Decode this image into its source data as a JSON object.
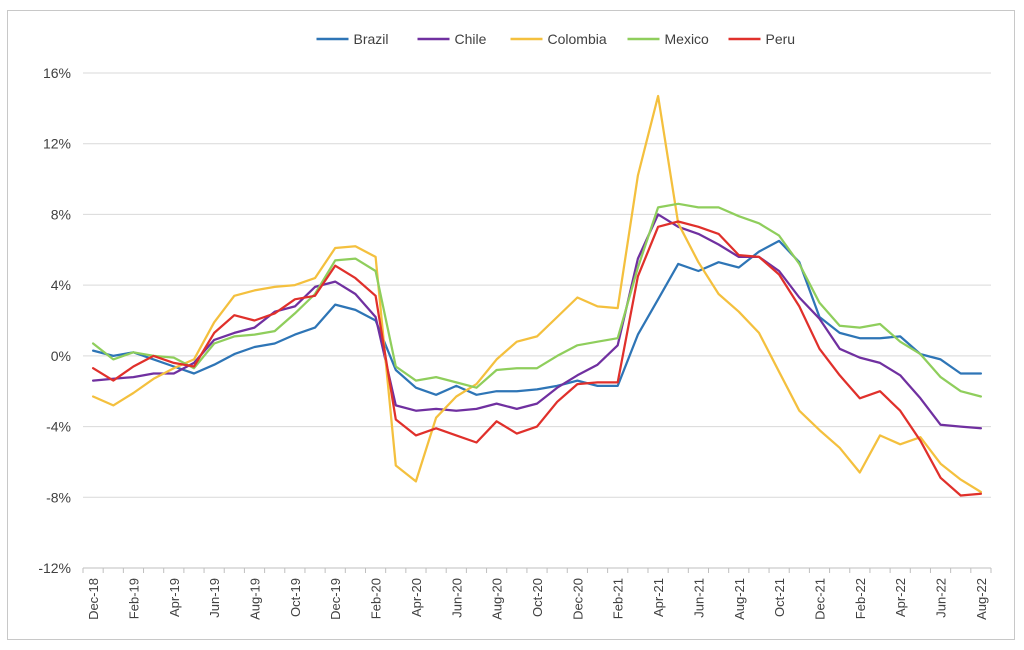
{
  "chart_data": {
    "type": "line",
    "title": "",
    "xlabel": "",
    "ylabel": "",
    "ylim": [
      -12,
      16
    ],
    "y_ticks": [
      -12,
      -8,
      -4,
      0,
      4,
      8,
      12,
      16
    ],
    "y_tick_labels": [
      "-12%",
      "-8%",
      "-4%",
      "0%",
      "4%",
      "8%",
      "12%",
      "16%"
    ],
    "grid": "horizontal",
    "legend_position": "top",
    "x": [
      "Dec-18",
      "Jan-19",
      "Feb-19",
      "Mar-19",
      "Apr-19",
      "May-19",
      "Jun-19",
      "Jul-19",
      "Aug-19",
      "Sep-19",
      "Oct-19",
      "Nov-19",
      "Dec-19",
      "Jan-20",
      "Feb-20",
      "Mar-20",
      "Apr-20",
      "May-20",
      "Jun-20",
      "Jul-20",
      "Aug-20",
      "Sep-20",
      "Oct-20",
      "Nov-20",
      "Dec-20",
      "Jan-21",
      "Feb-21",
      "Mar-21",
      "Apr-21",
      "May-21",
      "Jun-21",
      "Jul-21",
      "Aug-21",
      "Sep-21",
      "Oct-21",
      "Nov-21",
      "Dec-21",
      "Jan-22",
      "Feb-22",
      "Mar-22",
      "Apr-22",
      "May-22",
      "Jun-22",
      "Jul-22",
      "Aug-22"
    ],
    "x_tick_labels": [
      "Dec-18",
      "Feb-19",
      "Apr-19",
      "Jun-19",
      "Aug-19",
      "Oct-19",
      "Dec-19",
      "Feb-20",
      "Apr-20",
      "Jun-20",
      "Aug-20",
      "Oct-20",
      "Dec-20",
      "Feb-21",
      "Apr-21",
      "Jun-21",
      "Aug-21",
      "Oct-21",
      "Dec-21",
      "Feb-22",
      "Apr-22",
      "Jun-22",
      "Aug-22"
    ],
    "series": [
      {
        "name": "Brazil",
        "color": "#2e75b6",
        "values": [
          0.3,
          0.0,
          0.2,
          -0.2,
          -0.6,
          -1.0,
          -0.5,
          0.1,
          0.5,
          0.7,
          1.2,
          1.6,
          2.9,
          2.6,
          2.0,
          -0.8,
          -1.8,
          -2.2,
          -1.7,
          -2.2,
          -2.0,
          -2.0,
          -1.9,
          -1.7,
          -1.4,
          -1.7,
          -1.7,
          1.2,
          3.2,
          5.2,
          4.8,
          5.3,
          5.0,
          5.9,
          6.5,
          5.3,
          2.2,
          1.3,
          1.0,
          1.0,
          1.1,
          0.1,
          -0.2,
          -1.0,
          -1.0
        ]
      },
      {
        "name": "Chile",
        "color": "#7030a0",
        "values": [
          -1.4,
          -1.3,
          -1.2,
          -1.0,
          -1.0,
          -0.4,
          0.9,
          1.3,
          1.6,
          2.5,
          2.8,
          3.9,
          4.2,
          3.5,
          2.2,
          -2.8,
          -3.1,
          -3.0,
          -3.1,
          -3.0,
          -2.7,
          -3.0,
          -2.7,
          -1.8,
          -1.1,
          -0.5,
          0.6,
          5.5,
          8.0,
          7.3,
          6.9,
          6.3,
          5.6,
          5.6,
          4.8,
          3.3,
          2.1,
          0.4,
          -0.1,
          -0.4,
          -1.1,
          -2.4,
          -3.9,
          -4.0,
          -4.1
        ]
      },
      {
        "name": "Colombia",
        "color": "#f4c03e",
        "values": [
          -2.3,
          -2.8,
          -2.1,
          -1.3,
          -0.7,
          -0.2,
          1.9,
          3.4,
          3.7,
          3.9,
          4.0,
          4.4,
          6.1,
          6.2,
          5.6,
          -6.2,
          -7.1,
          -3.5,
          -2.3,
          -1.6,
          -0.2,
          0.8,
          1.1,
          2.2,
          3.3,
          2.8,
          2.7,
          10.2,
          14.7,
          7.5,
          5.3,
          3.5,
          2.5,
          1.3,
          -0.9,
          -3.1,
          -4.2,
          -5.2,
          -6.6,
          -4.5,
          -5.0,
          -4.6,
          -6.1,
          -7.0,
          -7.7
        ]
      },
      {
        "name": "Mexico",
        "color": "#8fce5c",
        "values": [
          0.7,
          -0.2,
          0.2,
          0.0,
          -0.1,
          -0.7,
          0.7,
          1.1,
          1.2,
          1.4,
          2.4,
          3.5,
          5.4,
          5.5,
          4.8,
          -0.6,
          -1.4,
          -1.2,
          -1.5,
          -1.8,
          -0.8,
          -0.7,
          -0.7,
          0.0,
          0.6,
          0.8,
          1.0,
          5.0,
          8.4,
          8.6,
          8.4,
          8.4,
          7.9,
          7.5,
          6.8,
          5.2,
          3.0,
          1.7,
          1.6,
          1.8,
          0.8,
          0.1,
          -1.2,
          -2.0,
          -2.3
        ]
      },
      {
        "name": "Peru",
        "color": "#e0302b",
        "values": [
          -0.7,
          -1.4,
          -0.6,
          0.0,
          -0.4,
          -0.6,
          1.3,
          2.3,
          2.0,
          2.4,
          3.2,
          3.4,
          5.1,
          4.4,
          3.4,
          -3.6,
          -4.5,
          -4.1,
          -4.5,
          -4.9,
          -3.7,
          -4.4,
          -4.0,
          -2.6,
          -1.6,
          -1.5,
          -1.5,
          4.5,
          7.3,
          7.6,
          7.3,
          6.9,
          5.7,
          5.6,
          4.6,
          2.8,
          0.4,
          -1.1,
          -2.4,
          -2.0,
          -3.1,
          -4.8,
          -6.9,
          -7.9,
          -7.8
        ]
      }
    ]
  }
}
